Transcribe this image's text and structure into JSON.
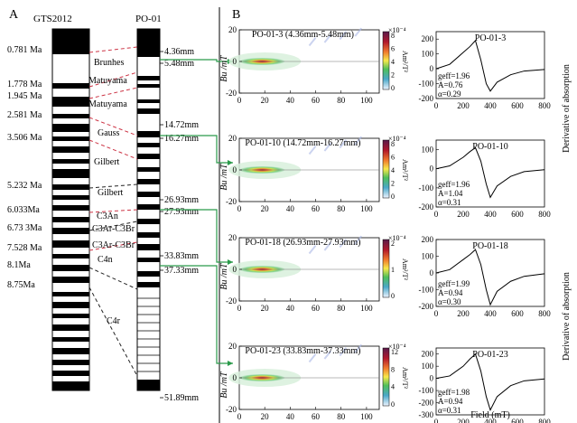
{
  "panels": {
    "a": "A",
    "b": "B"
  },
  "columns": {
    "gts": "GTS2012",
    "po": "PO-01"
  },
  "ages": [
    "0.781 Ma",
    "1.778 Ma",
    "1.945 Ma",
    "2.581 Ma",
    "3.506 Ma",
    "5.232 Ma",
    "6.033Ma",
    "6.73 3Ma",
    "7.528 Ma",
    "8.1Ma",
    "8.75Ma"
  ],
  "chrons": [
    "Brunhes",
    "Matuyama",
    "Matuyama",
    "Gauss",
    "Gilbert",
    "Gilbert",
    "C3An",
    "C3Ar-C3Br",
    "C3Ar-C3Br",
    "C4n",
    "C4r"
  ],
  "depths": [
    "4.36mm",
    "5.48mm",
    "14.72mm",
    "16.27mm",
    "26.93mm",
    "27.93mm",
    "33.83mm",
    "37.33mm",
    "51.89mm"
  ],
  "forc_axes": {
    "ylabel": "Bu /mT",
    "xlabel": "Bc /mT",
    "xticks": [
      "0",
      "20",
      "40",
      "60",
      "80",
      "100"
    ],
    "yticks": [
      "20",
      "0",
      "-20"
    ],
    "colorbar_unit": "Am²/T²",
    "colorbar_exp": "×10⁻⁴"
  },
  "curve_axes": {
    "xlabel": "Field (mT)",
    "ylabel": "Derivative of absorption",
    "xticks": [
      "0",
      "200",
      "400",
      "600",
      "800"
    ],
    "yticks": [
      "200",
      "100",
      "0",
      "-100",
      "-200",
      "-300"
    ]
  },
  "chart_data": [
    {
      "type": "heatmap",
      "title": "PO-01-3 (4.36mm-5.48mm)",
      "colorbar_ticks": [
        "8",
        "6",
        "4",
        "2",
        "0"
      ],
      "xlabel": "",
      "ylabel": "Bu /mT",
      "xlim": [
        0,
        110
      ],
      "ylim": [
        -20,
        20
      ]
    },
    {
      "type": "line",
      "title": "PO-01-3",
      "annotations": [
        "geff=1.96",
        "A=0.76",
        "α=0.29"
      ],
      "x": [
        0,
        100,
        200,
        250,
        290,
        330,
        370,
        400,
        450,
        550,
        650,
        800
      ],
      "y": [
        0,
        30,
        110,
        150,
        190,
        60,
        -100,
        -150,
        -90,
        -40,
        -15,
        -5
      ],
      "xlim": [
        0,
        800
      ],
      "ylim": [
        -200,
        250
      ]
    },
    {
      "type": "heatmap",
      "title": "PO-01-10 (14.72mm-16.27mm)",
      "colorbar_ticks": [
        "8",
        "6",
        "4",
        "2",
        "0"
      ],
      "xlabel": "",
      "ylabel": "Bu /mT",
      "xlim": [
        0,
        110
      ],
      "ylim": [
        -20,
        20
      ]
    },
    {
      "type": "line",
      "title": "PO-01-10",
      "annotations": [
        "geff=1.96",
        "A=1.04",
        "α=0.31"
      ],
      "x": [
        0,
        100,
        200,
        250,
        290,
        330,
        370,
        400,
        450,
        550,
        650,
        800
      ],
      "y": [
        0,
        15,
        60,
        90,
        110,
        40,
        -80,
        -150,
        -90,
        -40,
        -15,
        -5
      ],
      "xlim": [
        0,
        800
      ],
      "ylim": [
        -200,
        150
      ]
    },
    {
      "type": "heatmap",
      "title": "PO-01-18 (26.93mm-27.93mm)",
      "colorbar_ticks": [
        "2",
        "1",
        "0"
      ],
      "xlabel": "",
      "ylabel": "Bu /mT",
      "xlim": [
        0,
        110
      ],
      "ylim": [
        -20,
        20
      ]
    },
    {
      "type": "line",
      "title": "PO-01-18",
      "annotations": [
        "geff=1.99",
        "A=0.94",
        "α=0.30"
      ],
      "x": [
        0,
        100,
        200,
        250,
        290,
        330,
        370,
        400,
        450,
        550,
        650,
        800
      ],
      "y": [
        0,
        20,
        80,
        110,
        140,
        50,
        -100,
        -190,
        -110,
        -50,
        -20,
        -5
      ],
      "xlim": [
        0,
        800
      ],
      "ylim": [
        -200,
        200
      ]
    },
    {
      "type": "heatmap",
      "title": "PO-01-23 (33.83mm-37.33mm)",
      "colorbar_ticks": [
        "12",
        "8",
        "4",
        "0"
      ],
      "xlabel": "Bc /mT",
      "ylabel": "Bu /mT",
      "xlim": [
        0,
        110
      ],
      "ylim": [
        -20,
        20
      ]
    },
    {
      "type": "line",
      "title": "PO-01-23",
      "annotations": [
        "geff=1.98",
        "A=0.94",
        "α=0.31"
      ],
      "x": [
        0,
        100,
        200,
        250,
        290,
        330,
        370,
        400,
        450,
        550,
        650,
        800
      ],
      "y": [
        0,
        20,
        100,
        160,
        200,
        60,
        -150,
        -260,
        -150,
        -60,
        -20,
        -5
      ],
      "xlim": [
        0,
        800
      ],
      "ylim": [
        -300,
        250
      ]
    }
  ]
}
